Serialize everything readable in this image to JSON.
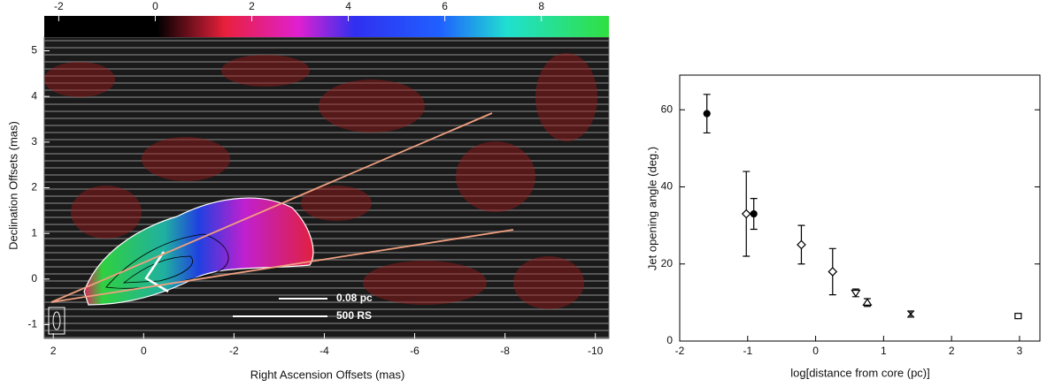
{
  "chart_data": [
    {
      "type": "image",
      "xlabel": "Right Ascension Offsets (mas)",
      "ylabel": "Declination Offsets (mas)",
      "xlim": [
        2.2,
        -10.3
      ],
      "xticks": [
        2,
        0,
        -2,
        -4,
        -6,
        -8,
        -10
      ],
      "ylim": [
        -1.3,
        5.3
      ],
      "yticks": [
        -1,
        0,
        1,
        2,
        3,
        4,
        5
      ],
      "colorbar_lim": [
        -2.3,
        9.4
      ],
      "colorbar_ticks": [
        -2,
        0,
        2,
        4,
        6,
        8
      ],
      "annotations": [
        "0.08 pc",
        "500 RS"
      ]
    },
    {
      "type": "errorbar",
      "xlabel": "log[distance from core (pc)]",
      "ylabel": "Jet opening angle (deg.)",
      "xlim": [
        -2,
        3.3
      ],
      "xticks": [
        -2,
        -1,
        0,
        1,
        2,
        3
      ],
      "ylim": [
        0,
        69
      ],
      "yticks": [
        0,
        20,
        40,
        60
      ],
      "x": [
        -1.6,
        -1.02,
        -0.91,
        -0.21,
        0.25,
        0.59,
        0.76,
        1.4,
        2.98
      ],
      "values": [
        59,
        33,
        33,
        25,
        18,
        12.5,
        10,
        7,
        6.5
      ],
      "errors": [
        5,
        11,
        4,
        5,
        6,
        1,
        1,
        0.8,
        0.6
      ],
      "markers": [
        "filled-circle",
        "diamond",
        "filled-circle",
        "diamond",
        "diamond",
        "down-triangle",
        "up-triangle",
        "cross",
        "square"
      ],
      "color": "#000000"
    }
  ]
}
